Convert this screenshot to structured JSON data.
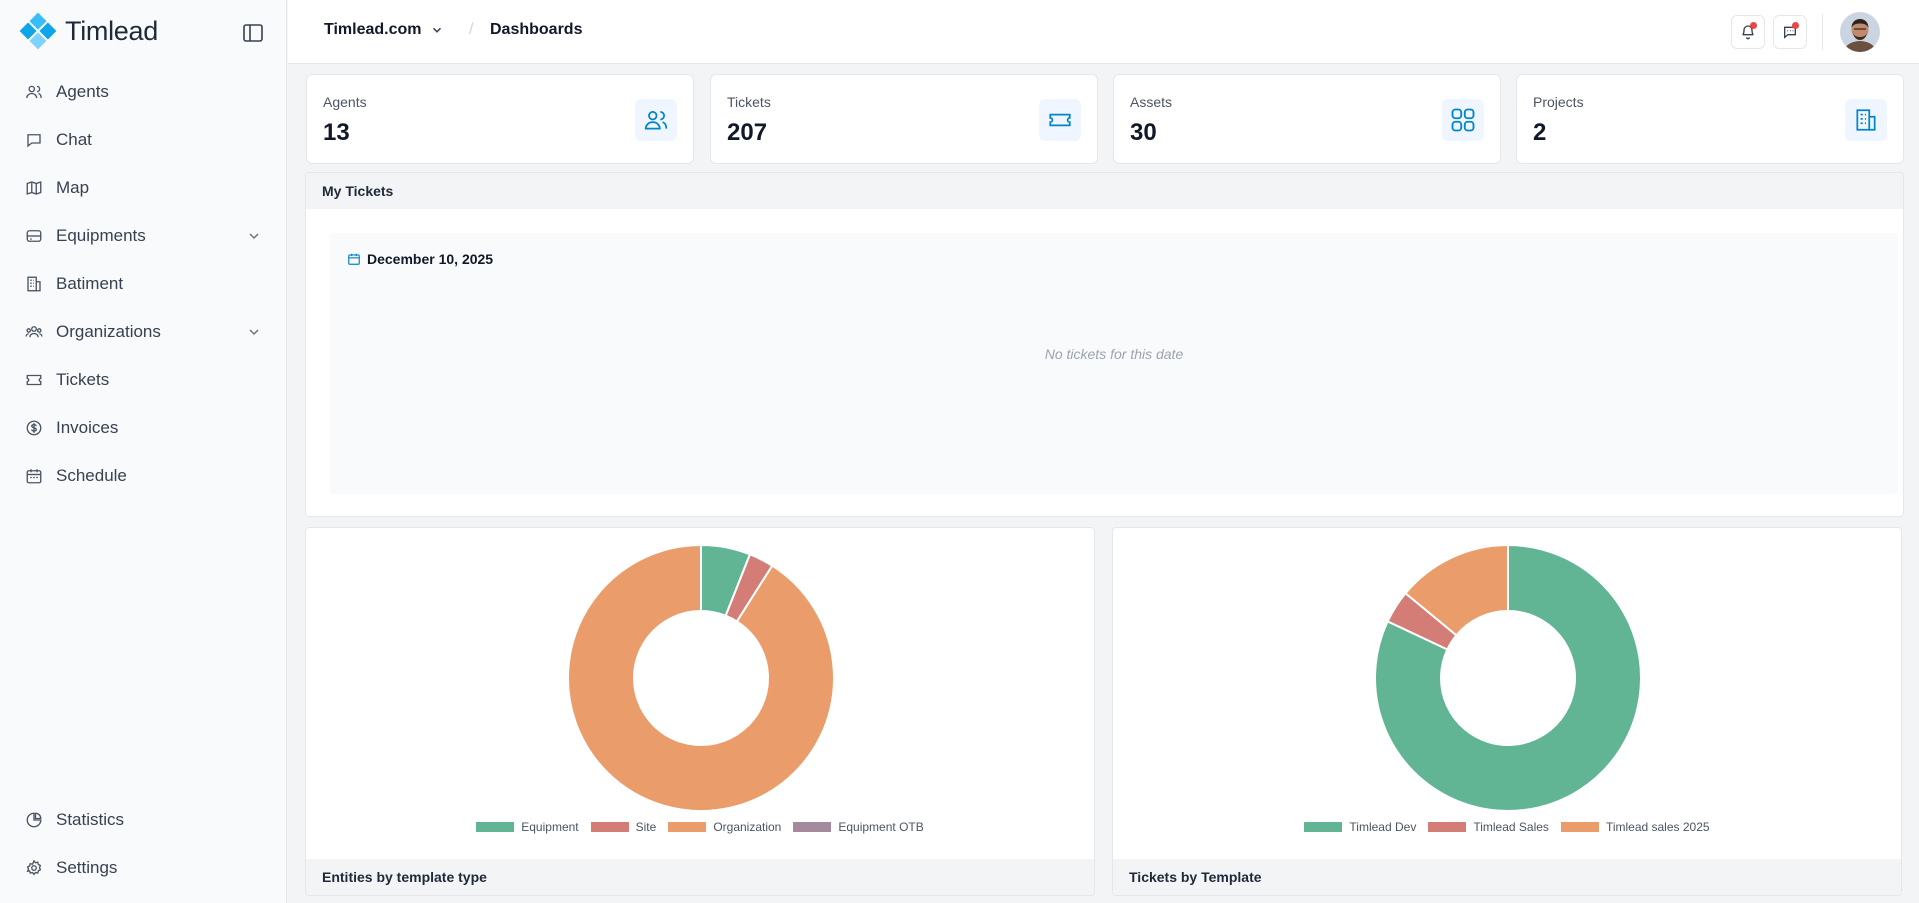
{
  "brand": {
    "name": "Timlead"
  },
  "sidebar": {
    "items": [
      {
        "label": "Agents",
        "icon": "users-icon"
      },
      {
        "label": "Chat",
        "icon": "chat-icon"
      },
      {
        "label": "Map",
        "icon": "map-icon"
      },
      {
        "label": "Equipments",
        "icon": "equipment-icon",
        "expandable": true
      },
      {
        "label": "Batiment",
        "icon": "building-icon"
      },
      {
        "label": "Organizations",
        "icon": "organizations-icon",
        "expandable": true
      },
      {
        "label": "Tickets",
        "icon": "ticket-icon"
      },
      {
        "label": "Invoices",
        "icon": "dollar-icon"
      },
      {
        "label": "Schedule",
        "icon": "calendar-icon"
      }
    ],
    "bottom": [
      {
        "label": "Statistics",
        "icon": "pie-chart-icon"
      },
      {
        "label": "Settings",
        "icon": "gear-icon"
      }
    ]
  },
  "header": {
    "org": "Timlead.com",
    "separator": "/",
    "current": "Dashboards"
  },
  "stats": [
    {
      "label": "Agents",
      "value": "13",
      "icon": "users-icon"
    },
    {
      "label": "Tickets",
      "value": "207",
      "icon": "ticket-icon"
    },
    {
      "label": "Assets",
      "value": "30",
      "icon": "grid-icon"
    },
    {
      "label": "Projects",
      "value": "2",
      "icon": "building-icon"
    }
  ],
  "my_tickets": {
    "title": "My Tickets",
    "date": "December 10, 2025",
    "empty": "No tickets for this date"
  },
  "colors": {
    "accent": "#0284c7",
    "green": "#62b594",
    "red": "#d47c76",
    "orange": "#ea9c6b",
    "purple": "#a58a9e"
  },
  "chart_data": [
    {
      "type": "pie",
      "donut": true,
      "title": "Entities by template type",
      "categories": [
        "Equipment",
        "Site",
        "Organization",
        "Equipment OTB"
      ],
      "values": [
        6,
        3,
        91,
        0
      ],
      "colors": [
        "#62b594",
        "#d47c76",
        "#ea9c6b",
        "#a58a9e"
      ],
      "legend": "bottom"
    },
    {
      "type": "pie",
      "donut": true,
      "title": "Tickets by Template",
      "categories": [
        "Timlead Dev",
        "Timlead Sales",
        "Timlead sales 2025"
      ],
      "values": [
        82,
        4,
        14
      ],
      "colors": [
        "#62b594",
        "#d47c76",
        "#ea9c6b"
      ],
      "legend": "bottom"
    }
  ]
}
